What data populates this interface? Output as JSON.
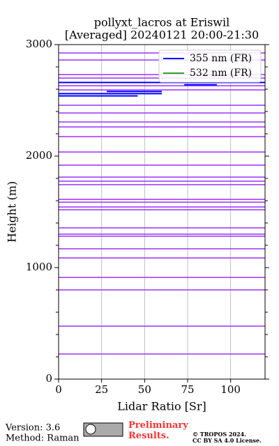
{
  "chart_data": {
    "type": "line",
    "title": "pollyxt_lacros at Eriswil",
    "subtitle": "[Averaged] 20240121 20:00-21:30",
    "x_label": "Lidar Ratio [Sr]",
    "y_label": "Height (m)",
    "xlim": [
      0,
      120
    ],
    "xticks": [
      0,
      25,
      50,
      75,
      100
    ],
    "ylim": [
      0,
      3000
    ],
    "yticks": [
      0,
      1000,
      2000,
      3000
    ],
    "yminorticks": [
      200,
      400,
      600,
      800,
      1200,
      1400,
      1600,
      1800,
      2200,
      2400,
      2600,
      2800
    ],
    "grid": "x",
    "legend": "upper-right",
    "series": [
      {
        "name": "355 nm (FR)",
        "color": "#0000ff",
        "x": [
          0,
          46,
          null,
          0,
          60,
          null,
          28,
          60,
          null,
          73,
          92,
          null,
          0,
          120
        ],
        "values": [
          2540,
          2540,
          null,
          2560,
          2560,
          null,
          2580,
          2580,
          null,
          2640,
          2640,
          null,
          2660,
          2660
        ]
      },
      {
        "name": "532 nm (FR)",
        "color": "#2ca02c",
        "x": [],
        "values": []
      }
    ],
    "reference_lines": {
      "color": "#9b30ff",
      "values": [
        2925,
        2862,
        2731,
        2700,
        2631,
        2594,
        2456,
        2387,
        2306,
        2262,
        2175,
        2037,
        1919,
        1812,
        1775,
        1744,
        1612,
        1587,
        1544,
        1519,
        1356,
        1300,
        1281,
        1169,
        1087,
        912,
        800,
        475,
        225
      ]
    }
  },
  "footer": {
    "version": "Version: 3.6",
    "method": "Method: Raman",
    "status": "Preliminary Results.",
    "copyright": "© TROPOS 2024.",
    "license": "CC BY SA 4.0 License."
  }
}
